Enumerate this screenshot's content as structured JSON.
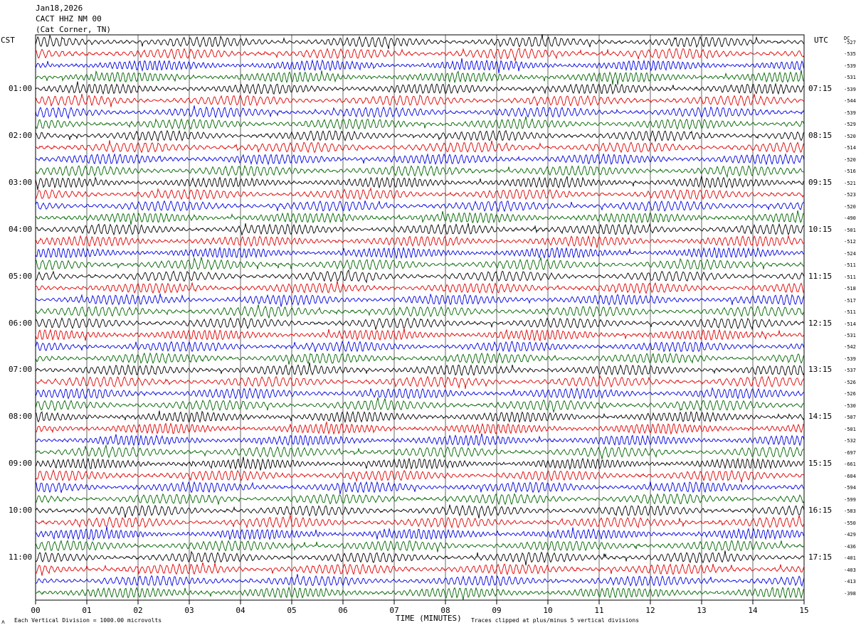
{
  "header": {
    "date": "Jan18,2026",
    "station": "CACT HHZ NM 00",
    "location": "(Cat Corner, TN)"
  },
  "left_tz": "CST",
  "right_tz": "UTC",
  "dc_label": "DC",
  "colors": {
    "traces": [
      "#000000",
      "#e00000",
      "#0000e0",
      "#006400"
    ],
    "grid": "#000000"
  },
  "chart_data": {
    "type": "line",
    "title": "",
    "xlabel": "TIME (MINUTES)",
    "ylabel": "",
    "xlim": [
      0,
      15
    ],
    "x_ticks": [
      "00",
      "01",
      "02",
      "03",
      "04",
      "05",
      "06",
      "07",
      "08",
      "09",
      "10",
      "11",
      "12",
      "13",
      "14",
      "15"
    ],
    "rows": 48,
    "rows_per_hour": 4,
    "left_hour_labels": [
      "01:00",
      "02:00",
      "03:00",
      "04:00",
      "05:00",
      "06:00",
      "07:00",
      "08:00",
      "09:00",
      "10:00",
      "11:00"
    ],
    "right_hour_labels": [
      "07:15",
      "08:15",
      "09:15",
      "10:15",
      "11:15",
      "12:15",
      "13:15",
      "14:15",
      "15:15",
      "16:15",
      "17:15"
    ],
    "dc_offsets": [
      -527,
      -535,
      -539,
      -531,
      -539,
      -544,
      -539,
      -529,
      -520,
      -514,
      -520,
      -516,
      -521,
      -523,
      -520,
      -490,
      -501,
      -512,
      -524,
      -511,
      -511,
      -518,
      -517,
      -511,
      -514,
      -531,
      -542,
      -539,
      -537,
      -526,
      -526,
      -530,
      -507,
      -501,
      -532,
      -697,
      -661,
      -604,
      -594,
      -599,
      -583,
      -550,
      -429,
      -436,
      -401,
      -403,
      -413,
      -398
    ],
    "grid": true
  },
  "footer": {
    "scale_note": "Each Vertical Division = 1000.00 microvolts",
    "clip_note": "Traces clipped at plus/minus 5 vertical divisions",
    "corner_mark": "ʌ"
  }
}
